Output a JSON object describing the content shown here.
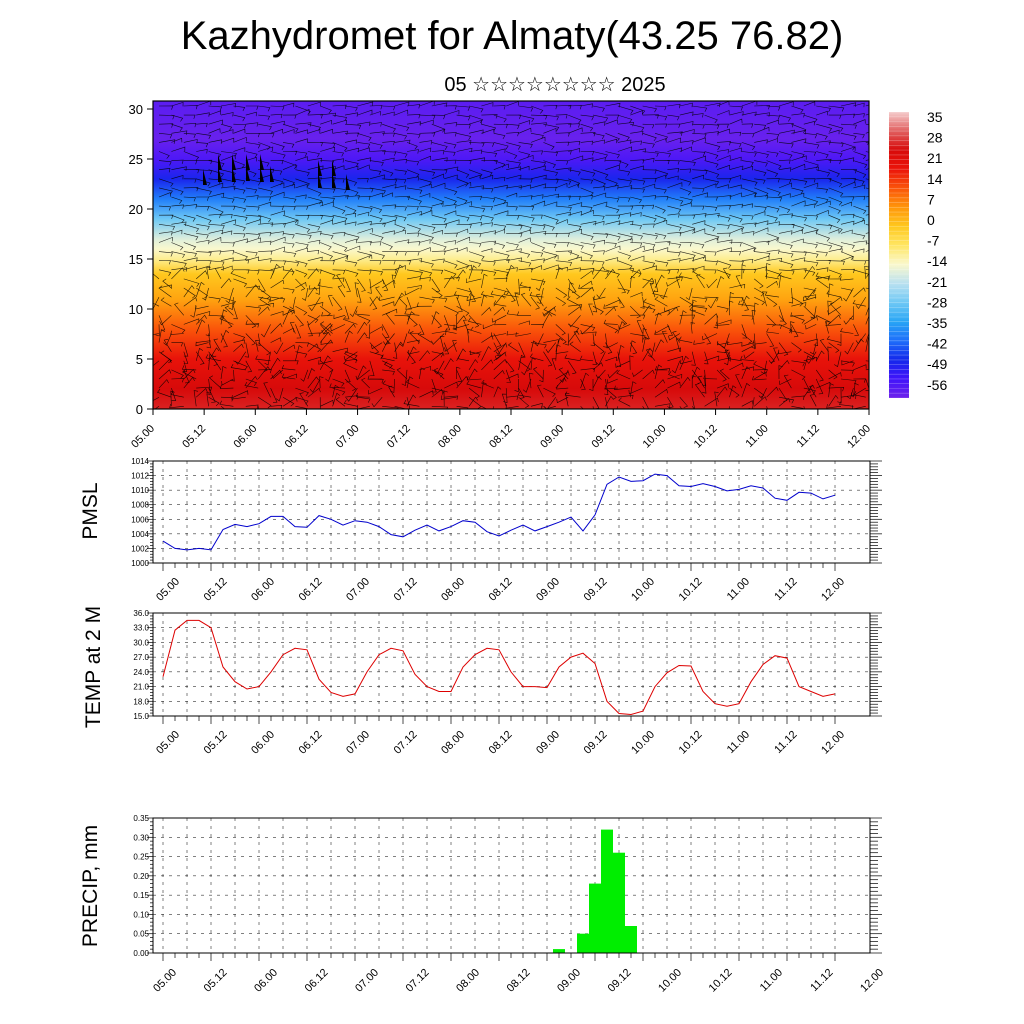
{
  "header": {
    "title": "Kazhydromet for Almaty(43.25 76.82)",
    "subtitle": "05 ☆☆☆☆☆☆☆☆ 2025"
  },
  "chart_data": [
    {
      "type": "heatmap",
      "title": "",
      "xlabel": "",
      "ylabel": "",
      "x_tick_labels": [
        "05.00",
        "05.12",
        "06.00",
        "06.12",
        "07.00",
        "07.12",
        "08.00",
        "08.12",
        "09.00",
        "09.12",
        "10.00",
        "10.12",
        "11.00",
        "11.12",
        "12.00"
      ],
      "y_ticks": [
        0,
        5,
        10,
        15,
        20,
        25,
        30
      ],
      "ylim": [
        0,
        30.8
      ],
      "colorbar_labels": [
        35,
        28,
        21,
        14,
        7,
        0,
        -7,
        -14,
        -21,
        -28,
        -35,
        -42,
        -49,
        -56
      ],
      "colorbar_range": [
        -63,
        42
      ],
      "overlay": "wind barbs",
      "temperature_by_level": [
        {
          "z": 0,
          "t": 30
        },
        {
          "z": 2,
          "t": 28
        },
        {
          "z": 5,
          "t": 22
        },
        {
          "z": 8,
          "t": 14
        },
        {
          "z": 11,
          "t": 5
        },
        {
          "z": 13.5,
          "t": 0
        },
        {
          "z": 15,
          "t": -10
        },
        {
          "z": 16,
          "t": -14
        },
        {
          "z": 17,
          "t": -17
        },
        {
          "z": 19,
          "t": -28
        },
        {
          "z": 21,
          "t": -40
        },
        {
          "z": 23,
          "t": -50
        },
        {
          "z": 25,
          "t": -58
        },
        {
          "z": 27,
          "t": -62
        },
        {
          "z": 30.8,
          "t": -60
        }
      ]
    },
    {
      "type": "line",
      "title": "",
      "ylabel": "PMSL",
      "xlabel": "",
      "ylim": [
        1000,
        1014
      ],
      "y_ticks": [
        "1000",
        "1002",
        "1004",
        "1006",
        "1008",
        "1010",
        "1012",
        "1014"
      ],
      "x_tick_labels": [
        "05.00",
        "05.12",
        "06.00",
        "06.12",
        "07.00",
        "07.12",
        "08.00",
        "08.12",
        "09.00",
        "09.12",
        "10.00",
        "10.12",
        "11.00",
        "11.12",
        "12.00"
      ],
      "x": [
        0,
        3,
        6,
        9,
        12,
        15,
        18,
        21,
        24,
        27,
        30,
        33,
        36,
        39,
        42,
        45,
        48,
        51,
        54,
        57,
        60,
        63,
        66,
        69,
        72,
        75,
        78,
        81,
        84,
        87,
        90,
        93,
        96,
        99,
        102,
        105,
        108,
        111,
        114,
        117,
        120,
        123,
        126,
        129,
        132,
        135,
        138,
        141,
        144,
        147,
        150,
        153,
        156,
        159,
        162,
        165,
        168
      ],
      "series": [
        {
          "color": "#0000cc",
          "values": [
            1003,
            1002,
            1001.8,
            1002,
            1001.8,
            1004.6,
            1005.3,
            1005,
            1005.4,
            1006.4,
            1006.4,
            1005,
            1004.9,
            1006.5,
            1006,
            1005.2,
            1005.8,
            1005.6,
            1005,
            1003.9,
            1003.6,
            1004.5,
            1005.2,
            1004.4,
            1005,
            1005.8,
            1005.6,
            1004.3,
            1003.7,
            1004.5,
            1005.2,
            1004.4,
            1005,
            1005.6,
            1006.3,
            1004.4,
            1006.6,
            1010.8,
            1011.8,
            1011.2,
            1011.3,
            1012.2,
            1012,
            1010.6,
            1010.5,
            1010.9,
            1010.5,
            1009.9,
            1010.1,
            1010.6,
            1010.3,
            1008.9,
            1008.6,
            1009.7,
            1009.6,
            1008.8,
            1009.3
          ]
        }
      ]
    },
    {
      "type": "line",
      "title": "",
      "ylabel": "TEMP at 2 M",
      "xlabel": "",
      "ylim": [
        15,
        36
      ],
      "y_ticks": [
        "15.0",
        "18.0",
        "21.0",
        "24.0",
        "27.0",
        "30.0",
        "33.0",
        "36.0"
      ],
      "x_tick_labels": [
        "05.00",
        "05.12",
        "06.00",
        "06.12",
        "07.00",
        "07.12",
        "08.00",
        "08.12",
        "09.00",
        "09.12",
        "10.00",
        "10.12",
        "11.00",
        "11.12",
        "12.00"
      ],
      "x": [
        0,
        3,
        6,
        9,
        12,
        15,
        18,
        21,
        24,
        27,
        30,
        33,
        36,
        39,
        42,
        45,
        48,
        51,
        54,
        57,
        60,
        63,
        66,
        69,
        72,
        75,
        78,
        81,
        84,
        87,
        90,
        93,
        96,
        99,
        102,
        105,
        108,
        111,
        114,
        117,
        120,
        123,
        126,
        129,
        132,
        135,
        138,
        141,
        144,
        147,
        150,
        153,
        156,
        159,
        162,
        165,
        168
      ],
      "series": [
        {
          "color": "#dd0000",
          "values": [
            23,
            32.5,
            34.5,
            34.5,
            33,
            25,
            22,
            20.5,
            21,
            24,
            27.5,
            28.8,
            28.5,
            22.5,
            19.8,
            19,
            19.5,
            24,
            27.5,
            28.8,
            28.3,
            23.5,
            21,
            20,
            20,
            25,
            27.5,
            28.8,
            28.5,
            24,
            21,
            21,
            20.8,
            25,
            27,
            27.8,
            25.7,
            18,
            15.5,
            15.3,
            16,
            21,
            23.8,
            25.3,
            25.2,
            20,
            17.5,
            17,
            17.5,
            22,
            25.5,
            27.3,
            26.8,
            21,
            20,
            19,
            19.5
          ]
        }
      ]
    },
    {
      "type": "bar",
      "title": "",
      "ylabel": "PRECIP, mm",
      "xlabel": "",
      "ylim": [
        0,
        0.35
      ],
      "y_ticks": [
        "0.00",
        "0.05",
        "0.10",
        "0.15",
        "0.20",
        "0.25",
        "0.30",
        "0.35"
      ],
      "x_tick_labels": [
        "05.00",
        "05.12",
        "06.00",
        "06.12",
        "07.00",
        "07.12",
        "08.00",
        "08.12",
        "09.00",
        "09.12",
        "10.00",
        "10.12",
        "11.00",
        "11.12",
        "12.00"
      ],
      "bar_color": "#00ee00",
      "bars": [
        {
          "x": 99,
          "value": 0.01
        },
        {
          "x": 105,
          "value": 0.05
        },
        {
          "x": 108,
          "value": 0.18
        },
        {
          "x": 111,
          "value": 0.32
        },
        {
          "x": 114,
          "value": 0.26
        },
        {
          "x": 117,
          "value": 0.07
        }
      ]
    }
  ]
}
